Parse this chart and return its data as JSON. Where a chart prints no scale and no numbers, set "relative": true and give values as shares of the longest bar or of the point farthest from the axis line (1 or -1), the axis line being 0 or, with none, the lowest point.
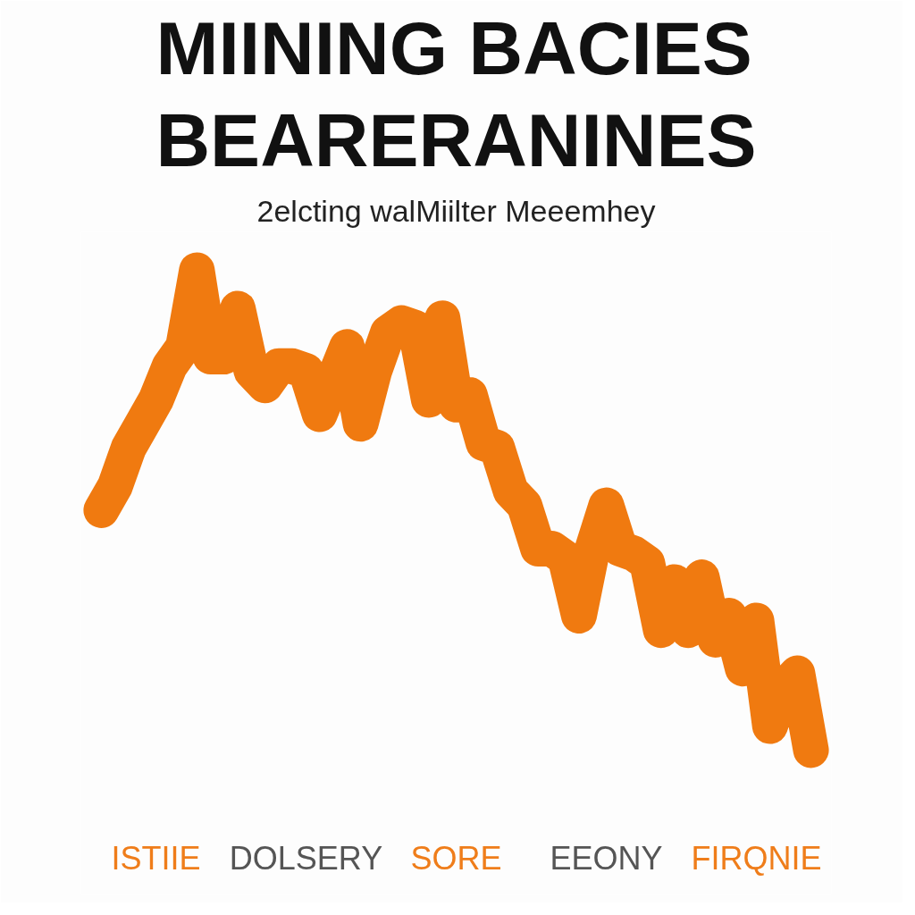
{
  "chart_data": {
    "type": "line",
    "relative": true,
    "title": "MIINING BACIES\nBEARERANINES",
    "subtitle": "2elcting walMiilter Meeemhey",
    "categories": [
      null,
      null,
      null,
      null,
      null,
      null,
      null,
      null,
      null,
      null,
      null,
      null,
      null,
      null,
      null,
      null,
      null,
      null,
      null,
      null,
      null,
      null,
      null,
      null,
      null,
      null,
      null,
      null,
      null,
      null,
      null,
      null,
      null,
      null,
      null,
      null,
      null,
      null,
      null,
      null,
      null,
      null,
      null,
      null,
      null,
      null,
      null,
      null,
      null,
      null,
      null,
      null,
      null
    ],
    "series": [
      {
        "color": "#f07a10",
        "values": [
          0.5,
          0.55,
          0.63,
          0.68,
          0.73,
          0.8,
          0.84,
          1.0,
          0.82,
          0.82,
          0.92,
          0.79,
          0.76,
          0.8,
          0.8,
          0.79,
          0.7,
          0.77,
          0.84,
          0.68,
          0.79,
          0.87,
          0.89,
          0.88,
          0.73,
          0.9,
          0.72,
          0.74,
          0.64,
          0.63,
          0.54,
          0.51,
          0.42,
          0.42,
          0.4,
          0.28,
          0.42,
          0.51,
          0.42,
          0.41,
          0.39,
          0.25,
          0.35,
          0.25,
          0.36,
          0.23,
          0.28,
          0.17,
          0.27,
          0.05,
          0.13,
          0.16,
          0.0
        ]
      }
    ],
    "annotations": [
      "ISTIIE",
      "DOLSERY",
      "SORE",
      "EEONY",
      "FIRQNIE"
    ],
    "grid": false
  }
}
